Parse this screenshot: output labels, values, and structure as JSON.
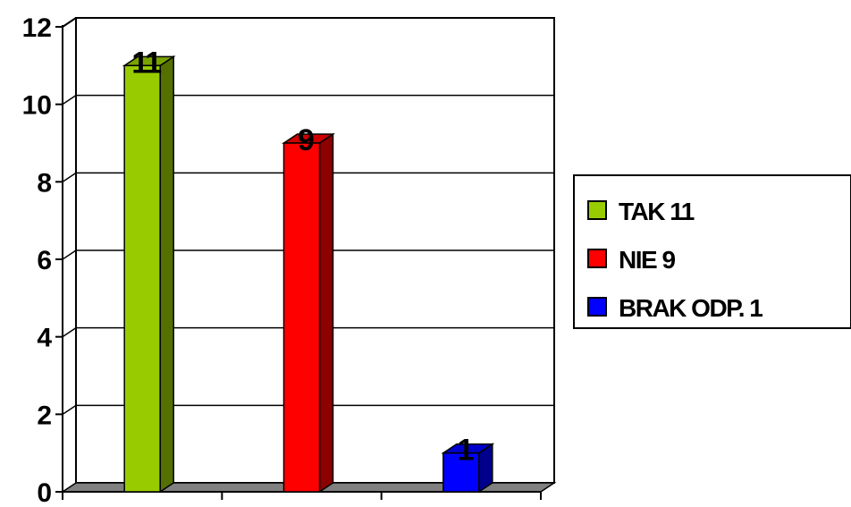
{
  "chart_data": {
    "type": "bar",
    "categories": [
      "TAK",
      "NIE",
      "BRAK ODP."
    ],
    "values": [
      11,
      9,
      1
    ],
    "data_labels": [
      "11",
      "9",
      "1"
    ],
    "colors": [
      "#99cc00",
      "#ff0000",
      "#0000ff"
    ],
    "ylim": [
      0,
      12
    ],
    "yticks": [
      "0",
      "2",
      "4",
      "6",
      "8",
      "10",
      "12"
    ],
    "grid": true,
    "three_d": true,
    "legend": {
      "position": "right",
      "entries": [
        "TAK 11",
        "NIE 9",
        "BRAK ODP. 1"
      ]
    }
  }
}
